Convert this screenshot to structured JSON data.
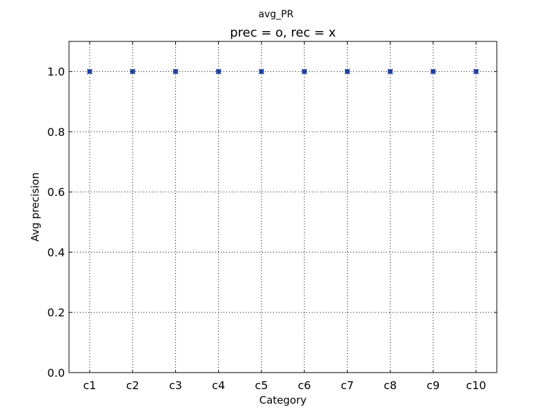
{
  "window_title": "avg_PR",
  "chart_data": {
    "type": "scatter",
    "title": "prec = o, rec = x",
    "xlabel": "Category",
    "ylabel": "Avg precision",
    "categories": [
      "c1",
      "c2",
      "c3",
      "c4",
      "c5",
      "c6",
      "c7",
      "c8",
      "c9",
      "c10"
    ],
    "series": [
      {
        "marker": "o",
        "color": "#1f3f9f",
        "values": [
          1.0,
          1.0,
          1.0,
          1.0,
          1.0,
          1.0,
          1.0,
          1.0,
          1.0,
          1.0
        ]
      },
      {
        "marker": "x",
        "color": "#1f3f9f",
        "values": [
          1.0,
          1.0,
          1.0,
          1.0,
          1.0,
          1.0,
          1.0,
          1.0,
          1.0,
          1.0
        ]
      }
    ],
    "ylim": [
      0.0,
      1.1
    ],
    "yticks": [
      "0.0",
      "0.2",
      "0.4",
      "0.6",
      "0.8",
      "1.0"
    ],
    "grid": true
  }
}
